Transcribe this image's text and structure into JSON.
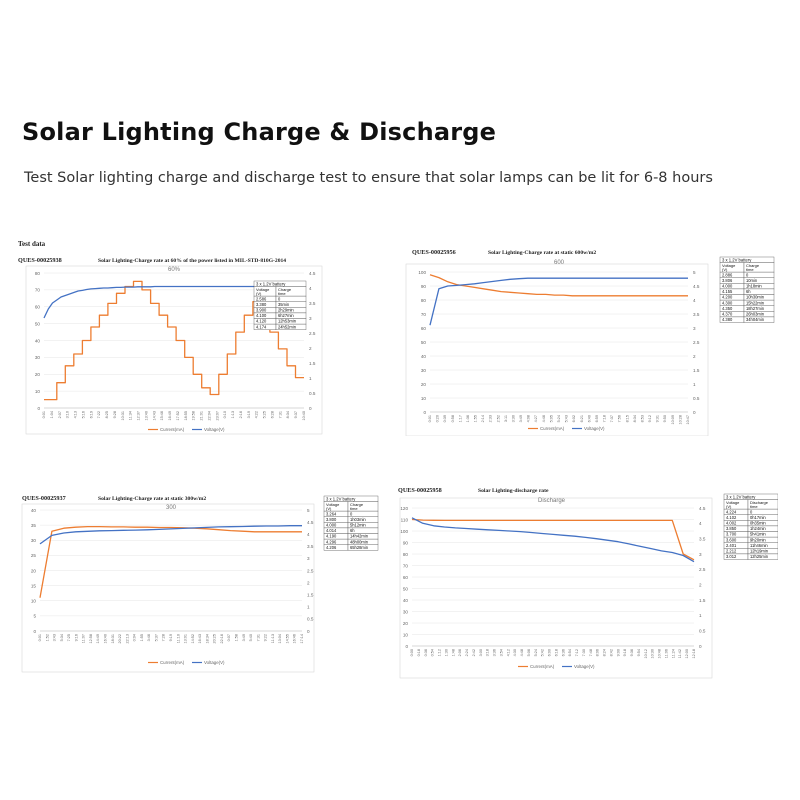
{
  "header": {
    "title": "Solar Lighting Charge & Discharge",
    "subtitle": "Test Solar lighting charge and discharge test to ensure that solar lamps can be lit for 6-8 hours",
    "test_data_label": "Test data"
  },
  "colors": {
    "current": "#ed7d31",
    "voltage": "#4472c4"
  },
  "legend": {
    "current": "Current(mA)",
    "voltage": "Voltage(V)"
  },
  "chart_data": [
    {
      "id": "QUES-00025938",
      "title": "Solar Lighting-Charge rate at 60% of the power listed in MIL-STD-810G-2014",
      "subtitle": "60%",
      "type": "line",
      "ylim_left": [
        0,
        80
      ],
      "yticks_left": [
        0,
        10,
        20,
        30,
        40,
        50,
        60,
        70,
        80
      ],
      "ylim_right": [
        0,
        4.5
      ],
      "yticks_right": [
        0,
        0.5,
        1,
        1.5,
        2,
        2.5,
        3,
        3.5,
        4,
        4.5
      ],
      "x_ticks": [
        "0:01",
        "1:04",
        "2:07",
        "3:10",
        "4:13",
        "5:16",
        "6:19",
        "7:22",
        "8:25",
        "9:28",
        "10:31",
        "11:34",
        "12:37",
        "13:40",
        "14:43",
        "15:46",
        "16:49",
        "17:52",
        "18:55",
        "19:58",
        "21:01",
        "22:04",
        "23:07",
        "0:10",
        "1:13",
        "2:16",
        "3:19",
        "4:22",
        "5:25",
        "6:28",
        "7:31",
        "8:34",
        "9:37",
        "10:40"
      ],
      "series": [
        {
          "name": "Current(mA)",
          "axis": "left",
          "values": [
            5,
            5,
            5,
            15,
            15,
            25,
            25,
            32,
            32,
            40,
            40,
            48,
            48,
            55,
            55,
            62,
            62,
            68,
            68,
            72,
            72,
            75,
            75,
            70,
            70,
            62,
            62,
            55,
            55,
            48,
            48,
            40,
            40,
            30,
            30,
            20,
            20,
            12,
            12,
            8,
            8,
            20,
            20,
            32,
            32,
            45,
            45,
            55,
            55,
            63,
            63,
            55,
            55,
            45,
            45,
            35,
            35,
            25,
            25,
            18,
            18,
            18
          ]
        },
        {
          "name": "Voltage(V)",
          "axis": "right",
          "values": [
            3.0,
            3.3,
            3.5,
            3.6,
            3.7,
            3.75,
            3.8,
            3.85,
            3.9,
            3.92,
            3.95,
            3.97,
            3.98,
            3.99,
            4.0,
            4.0,
            4.01,
            4.02,
            4.02,
            4.03,
            4.03,
            4.03,
            4.04,
            4.04,
            4.04,
            4.04,
            4.05,
            4.05,
            4.05,
            4.05,
            4.05,
            4.05,
            4.05,
            4.05,
            4.05,
            4.05,
            4.05,
            4.05,
            4.05,
            4.05,
            4.05,
            4.05,
            4.05,
            4.05,
            4.05,
            4.05,
            4.05,
            4.05,
            4.05,
            4.05,
            4.05,
            4.05,
            4.05,
            4.05,
            4.05,
            4.05,
            4.05,
            4.05,
            4.05,
            4.05,
            4.05,
            4.05
          ]
        }
      ],
      "table": {
        "header": "3 x 1.2V battery",
        "columns": [
          "Voltage (V)",
          "Charge time"
        ],
        "rows": [
          [
            "2.586",
            "0"
          ],
          [
            "3.380",
            "35min"
          ],
          [
            "3.900",
            "2h29min"
          ],
          [
            "4.100",
            "6h27min"
          ],
          [
            "4.120",
            "12h53min"
          ],
          [
            "4.174",
            "24h52min"
          ]
        ]
      }
    },
    {
      "id": "QUES-00025956",
      "title": "Solar Lighting-Charge rate at static 600w/m2",
      "subtitle": "600",
      "type": "line",
      "ylim_left": [
        0,
        100
      ],
      "yticks_left": [
        0,
        10,
        20,
        30,
        40,
        50,
        60,
        70,
        80,
        90,
        100
      ],
      "ylim_right": [
        0,
        5
      ],
      "yticks_right": [
        0,
        0.5,
        1,
        1.5,
        2,
        2.5,
        3,
        3.5,
        4,
        4.5,
        5
      ],
      "x_ticks": [
        "0:01",
        "0:20",
        "0:39",
        "0:58",
        "1:17",
        "1:36",
        "1:55",
        "2:14",
        "2:33",
        "2:52",
        "3:11",
        "3:30",
        "3:49",
        "4:08",
        "4:27",
        "4:46",
        "5:05",
        "5:24",
        "5:43",
        "6:02",
        "6:21",
        "6:40",
        "6:59",
        "7:18",
        "7:37",
        "7:56",
        "8:15",
        "8:34",
        "8:53",
        "9:12",
        "9:31",
        "9:50",
        "10:09",
        "10:28",
        "10:47"
      ],
      "series": [
        {
          "name": "Current(mA)",
          "axis": "left",
          "values": [
            98,
            96,
            93,
            91,
            90,
            89,
            88,
            87,
            86,
            85.5,
            85,
            84.5,
            84,
            84,
            83.5,
            83.5,
            83,
            83,
            83,
            83,
            83,
            83,
            83,
            83,
            83,
            83,
            83,
            83,
            83,
            83
          ]
        },
        {
          "name": "Voltage(V)",
          "axis": "right",
          "values": [
            3.1,
            4.4,
            4.5,
            4.52,
            4.55,
            4.58,
            4.62,
            4.66,
            4.7,
            4.74,
            4.76,
            4.78,
            4.78,
            4.78,
            4.78,
            4.78,
            4.78,
            4.78,
            4.78,
            4.78,
            4.78,
            4.78,
            4.78,
            4.78,
            4.78,
            4.78,
            4.78,
            4.78,
            4.78,
            4.78
          ]
        }
      ],
      "table": {
        "header": "3 x 1.2V battery",
        "columns": [
          "Voltage (V)",
          "Charge time"
        ],
        "rows": [
          [
            "2.886",
            "0"
          ],
          [
            "3.806",
            "10min"
          ],
          [
            "4.000",
            "1h18min"
          ],
          [
            "4.155",
            "6h"
          ],
          [
            "4.200",
            "10h30min"
          ],
          [
            "4.300",
            "15h22min"
          ],
          [
            "4.350",
            "18h27min"
          ],
          [
            "4.370",
            "26h03min"
          ],
          [
            "4.380",
            "34h04min"
          ]
        ]
      }
    },
    {
      "id": "QUES-00025937",
      "title": "Solar Lighting-Charge rate at static 300w/m2",
      "subtitle": "300",
      "type": "line",
      "ylim_left": [
        0,
        40
      ],
      "yticks_left": [
        0,
        5,
        10,
        15,
        20,
        25,
        30,
        35,
        40
      ],
      "ylim_right": [
        0,
        5
      ],
      "yticks_right": [
        0,
        0.5,
        1,
        1.5,
        2,
        2.5,
        3,
        3.5,
        4,
        4.5,
        5
      ],
      "x_ticks": [
        "0:01",
        "1:52",
        "3:43",
        "5:34",
        "7:25",
        "9:16",
        "11:07",
        "12:58",
        "14:49",
        "16:40",
        "18:31",
        "20:22",
        "22:13",
        "0:04",
        "1:55",
        "3:46",
        "5:37",
        "7:28",
        "9:19",
        "11:10",
        "13:01",
        "14:52",
        "16:43",
        "18:34",
        "20:25",
        "22:16",
        "0:07",
        "1:58",
        "3:49",
        "5:40",
        "7:31",
        "9:22",
        "11:13",
        "13:04",
        "14:55",
        "16:46",
        "17:14"
      ],
      "series": [
        {
          "name": "Current(mA)",
          "axis": "left",
          "values": [
            11,
            33,
            34,
            34.3,
            34.5,
            34.5,
            34.4,
            34.4,
            34.3,
            34.3,
            34.2,
            34.2,
            34.1,
            34,
            33.8,
            33.5,
            33.2,
            33,
            32.8,
            32.8,
            32.8,
            32.8,
            32.8
          ]
        },
        {
          "name": "Voltage(V)",
          "axis": "right",
          "values": [
            3.6,
            3.95,
            4.05,
            4.1,
            4.12,
            4.14,
            4.15,
            4.16,
            4.17,
            4.18,
            4.2,
            4.22,
            4.24,
            4.26,
            4.28,
            4.3,
            4.31,
            4.32,
            4.33,
            4.34,
            4.34,
            4.35,
            4.35
          ]
        }
      ],
      "table": {
        "header": "3 x 1.2V battery",
        "columns": [
          "Voltage (V)",
          "Charge time"
        ],
        "rows": [
          [
            "3.264",
            "0"
          ],
          [
            "3.800",
            "1h03min"
          ],
          [
            "4.000",
            "5h12min"
          ],
          [
            "4.014",
            "6h"
          ],
          [
            "4.190",
            "14h42min"
          ],
          [
            "4.296",
            "48h00min"
          ],
          [
            "4.206",
            "65h28min"
          ]
        ]
      }
    },
    {
      "id": "QUES-00025958",
      "title": "Solar Lighting-discharge rate",
      "subtitle": "Discharge",
      "type": "line",
      "ylim_left": [
        0,
        120
      ],
      "yticks_left": [
        0,
        10,
        20,
        30,
        40,
        50,
        60,
        70,
        80,
        90,
        100,
        110,
        120
      ],
      "ylim_right": [
        0,
        4.5
      ],
      "yticks_right": [
        0,
        0.5,
        1,
        1.5,
        2,
        2.5,
        3,
        3.5,
        4,
        4.5
      ],
      "x_ticks": [
        "0:00",
        "0:18",
        "0:36",
        "0:54",
        "1:12",
        "1:30",
        "1:48",
        "2:06",
        "2:24",
        "2:42",
        "3:00",
        "3:18",
        "3:36",
        "3:54",
        "4:12",
        "4:30",
        "4:48",
        "5:06",
        "5:24",
        "5:42",
        "6:00",
        "6:18",
        "6:36",
        "6:54",
        "7:12",
        "7:30",
        "7:48",
        "8:06",
        "8:24",
        "8:42",
        "9:00",
        "9:18",
        "9:36",
        "9:54",
        "10:12",
        "10:30",
        "10:48",
        "11:06",
        "11:24",
        "11:42",
        "12:00",
        "12:18"
      ],
      "series": [
        {
          "name": "Current(mA)",
          "axis": "left",
          "values": [
            110,
            109.5,
            109.3,
            109.2,
            109.2,
            109.2,
            109.2,
            109.2,
            109.2,
            109.2,
            109.2,
            109.2,
            109.2,
            109.2,
            109.2,
            109.2,
            109.2,
            109.2,
            109.2,
            109.2,
            109.2,
            109.2,
            109.2,
            109.2,
            109.2,
            80,
            75
          ]
        },
        {
          "name": "Voltage(V)",
          "axis": "right",
          "values": [
            4.18,
            4.0,
            3.92,
            3.88,
            3.85,
            3.83,
            3.81,
            3.79,
            3.77,
            3.75,
            3.73,
            3.7,
            3.67,
            3.64,
            3.61,
            3.58,
            3.54,
            3.5,
            3.45,
            3.4,
            3.33,
            3.25,
            3.18,
            3.1,
            3.05,
            2.95,
            2.75
          ]
        }
      ],
      "table": {
        "header": "3 x 1.2V battery",
        "columns": [
          "Voltage (V)",
          "Discharge time"
        ],
        "rows": [
          [
            "4.224",
            "0"
          ],
          [
            "4.102",
            "0h17min"
          ],
          [
            "4.002",
            "0h35min"
          ],
          [
            "3.850",
            "1h24min"
          ],
          [
            "3.700",
            "5h41min"
          ],
          [
            "3.600",
            "9h20min"
          ],
          [
            "2.401",
            "11h46min"
          ],
          [
            "2.212",
            "12h19min"
          ],
          [
            "3.012",
            "12h25min"
          ]
        ]
      }
    }
  ]
}
